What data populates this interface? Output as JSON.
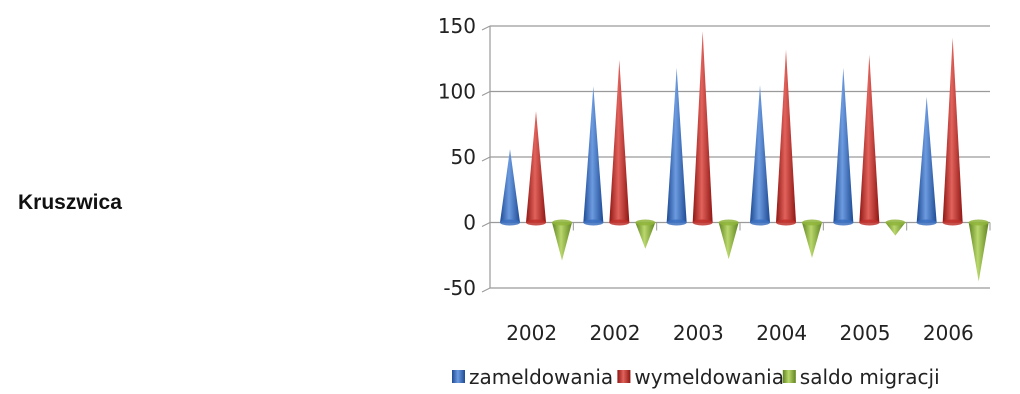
{
  "side_label": "Kruszwica",
  "chart_data": {
    "type": "bar",
    "style": "3d-cone",
    "categories": [
      "2002",
      "2002",
      "2003",
      "2004",
      "2005",
      "2006"
    ],
    "ylim": [
      -50,
      150
    ],
    "yticks": [
      "150",
      "100",
      "50",
      "0",
      "-50"
    ],
    "grid": true,
    "legend_position": "bottom",
    "series": [
      {
        "name": "zameldowania",
        "color": "#3b6fc0",
        "values": [
          56,
          104,
          118,
          105,
          118,
          96
        ]
      },
      {
        "name": "wymeldowania",
        "color": "#c0302c",
        "values": [
          85,
          124,
          146,
          132,
          128,
          141
        ]
      },
      {
        "name": "saldo migracji",
        "color": "#8fb53a",
        "values": [
          -29,
          -20,
          -28,
          -27,
          -10,
          -45
        ]
      }
    ]
  }
}
